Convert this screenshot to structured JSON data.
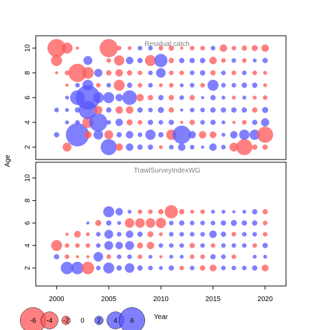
{
  "chart_data": {
    "type": "scatter",
    "encoding": "bubble",
    "xlabel": "Year",
    "ylabel": "Age",
    "xticks": [
      2000,
      2005,
      2010,
      2015,
      2020
    ],
    "yticks": [
      2,
      4,
      6,
      8,
      10
    ],
    "xlim": [
      1998,
      2022
    ],
    "colors": {
      "positive": "#5555ff",
      "negative": "#ff5555"
    },
    "legend": {
      "placement": "bottom-left",
      "values": [
        -6,
        -4,
        -2,
        0,
        2,
        4,
        6
      ],
      "labels": [
        "-6",
        "-4",
        "-2",
        "0",
        "2",
        "4",
        "6"
      ]
    },
    "panels": [
      {
        "title": "Residual catch",
        "ylim": [
          1,
          11
        ],
        "years": [
          2000,
          2001,
          2002,
          2003,
          2004,
          2005,
          2006,
          2007,
          2008,
          2009,
          2010,
          2011,
          2012,
          2013,
          2014,
          2015,
          2016,
          2017,
          2018,
          2019,
          2020
        ],
        "ages": [
          2,
          3,
          4,
          5,
          6,
          7,
          8,
          9,
          10
        ],
        "values": [
          [
            0,
            -1.2,
            0,
            0,
            0,
            2.2,
            -1,
            1,
            0.7,
            0.7,
            -0.5,
            0.6,
            1,
            0.6,
            0.4,
            1,
            0.6,
            -1.2,
            -2.2,
            -0.7,
            -0.7
          ],
          [
            0.7,
            0,
            3.2,
            -1,
            1.3,
            -1.2,
            0.7,
            1,
            0.6,
            1.4,
            0.7,
            -1.4,
            2.5,
            1,
            -1,
            -0.9,
            0.5,
            1,
            1.4,
            1.4,
            -2.2
          ],
          [
            0,
            0.5,
            0.6,
            -1.5,
            2.5,
            0.6,
            1,
            -0.8,
            -0.6,
            0.7,
            0.6,
            0.7,
            -0.4,
            -0.7,
            0.6,
            0.7,
            0.5,
            -0.4,
            -0.6,
            0.7,
            1.1
          ],
          [
            0.6,
            0.5,
            0.7,
            2.5,
            -1.1,
            0.7,
            -1,
            -1,
            0.7,
            0.6,
            0.8,
            -0.7,
            0.4,
            0.6,
            0.6,
            0.7,
            0.7,
            0.7,
            0.7,
            -0.7,
            0.8
          ],
          [
            0,
            0.5,
            2,
            3.4,
            1.5,
            1.5,
            1,
            2,
            -1,
            -0.7,
            0.7,
            -0.7,
            0.6,
            -0.7,
            0.4,
            0.7,
            0.5,
            -0.5,
            0.5,
            -0.5,
            -0.6
          ],
          [
            0,
            -0.4,
            0.6,
            1.5,
            -0.6,
            0.6,
            -1.5,
            0.7,
            -0.6,
            0.6,
            -0.5,
            -0.6,
            0.5,
            0.6,
            -0.6,
            1.5,
            0.6,
            0.6,
            0.7,
            0.7,
            -0.5
          ],
          [
            -0.4,
            -0.6,
            -2.5,
            -1.6,
            1.1,
            -0.7,
            -1,
            -0.7,
            -0.6,
            0.6,
            1.3,
            -0.6,
            -0.6,
            0.6,
            0.7,
            -0.7,
            0.6,
            -0.6,
            0.6,
            -0.6,
            -0.5
          ],
          [
            -1.5,
            0,
            0,
            1.2,
            0,
            -0.6,
            -1.4,
            1,
            0.7,
            -1.5,
            1.8,
            -0.7,
            0.7,
            0.7,
            0.7,
            -1,
            -0.6,
            0.6,
            -0.6,
            0.5,
            0.7
          ],
          [
            -2.5,
            -1.5,
            -0.4,
            0,
            0,
            -2.5,
            -0.6,
            -0.5,
            0.6,
            0.6,
            -0.6,
            -0.7,
            -0.4,
            -0.6,
            -0.6,
            0.6,
            -1,
            -0.6,
            -0.7,
            -0.8,
            -1
          ]
        ]
      },
      {
        "title": "TrawlSurveyIndexWG",
        "ylim": [
          0.4,
          11.4
        ],
        "years": [
          2000,
          2001,
          2002,
          2003,
          2004,
          2005,
          2006,
          2007,
          2008,
          2009,
          2010,
          2011,
          2012,
          2013,
          2014,
          2015,
          2016,
          2017,
          2018,
          2019,
          2020
        ],
        "ages": [
          2,
          3,
          4,
          5,
          6,
          7
        ],
        "values": [
          [
            0,
            1.7,
            1.7,
            -1.7,
            0.6,
            1.5,
            0.7,
            1.3,
            0.7,
            0.6,
            0.5,
            0.7,
            -0.6,
            0.6,
            -0.7,
            -0.9,
            0.6,
            0.6,
            0.6,
            0.7,
            -0.9
          ],
          [
            0.7,
            -0.6,
            -0.4,
            -0.4,
            1.3,
            -0.6,
            0.6,
            0.6,
            -0.6,
            0.5,
            -0.4,
            0.5,
            0.5,
            -0.6,
            -0.6,
            0.7,
            0.6,
            -0.6,
            0,
            0.5,
            0.5
          ],
          [
            -1.5,
            -0.6,
            -0.6,
            -0.6,
            0.6,
            1.2,
            1,
            1.2,
            -0.8,
            -1,
            0.6,
            0.6,
            0.6,
            -0.7,
            0.6,
            -0.6,
            0.6,
            0.6,
            0.6,
            -0.6,
            0.7
          ],
          [
            0,
            -0.4,
            -0.9,
            -0.5,
            0.6,
            1.2,
            0.6,
            1,
            0.7,
            -0.8,
            -0.5,
            0.6,
            0.6,
            0.6,
            0.6,
            1,
            0.7,
            -0.6,
            0.6,
            0.6,
            -0.6
          ],
          [
            0,
            0,
            0,
            0.4,
            -0.8,
            0.7,
            0.5,
            -1.3,
            -1.3,
            -1.3,
            -1.4,
            0.6,
            0.7,
            0.6,
            0.6,
            0.6,
            0.7,
            0.8,
            0.7,
            0.7,
            -0.6
          ],
          [
            0,
            0,
            0,
            0,
            0,
            1.5,
            1,
            0.5,
            -0.6,
            -0.6,
            -0.7,
            -1.8,
            -0.7,
            -0.5,
            -0.6,
            0.5,
            0.5,
            0.4,
            0.5,
            0.7,
            -0.7
          ]
        ]
      }
    ]
  }
}
